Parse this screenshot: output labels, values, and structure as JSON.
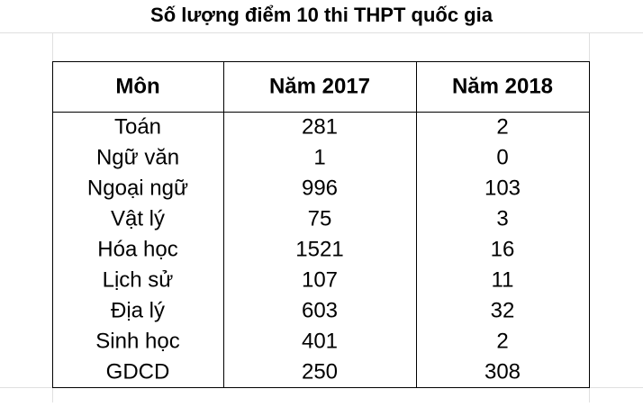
{
  "title": "Số lượng điểm 10 thi THPT quốc gia",
  "table": {
    "header": [
      "Môn",
      "Năm 2017",
      "Năm 2018"
    ],
    "rows": [
      [
        "Toán",
        281,
        2
      ],
      [
        "Ngữ văn",
        1,
        0
      ],
      [
        "Ngoại ngữ",
        996,
        103
      ],
      [
        "Vật lý",
        75,
        3
      ],
      [
        "Hóa học",
        1521,
        16
      ],
      [
        "Lịch sử",
        107,
        11
      ],
      [
        "Địa lý",
        603,
        32
      ],
      [
        "Sinh học",
        401,
        2
      ],
      [
        "GDCD",
        250,
        308
      ]
    ]
  }
}
